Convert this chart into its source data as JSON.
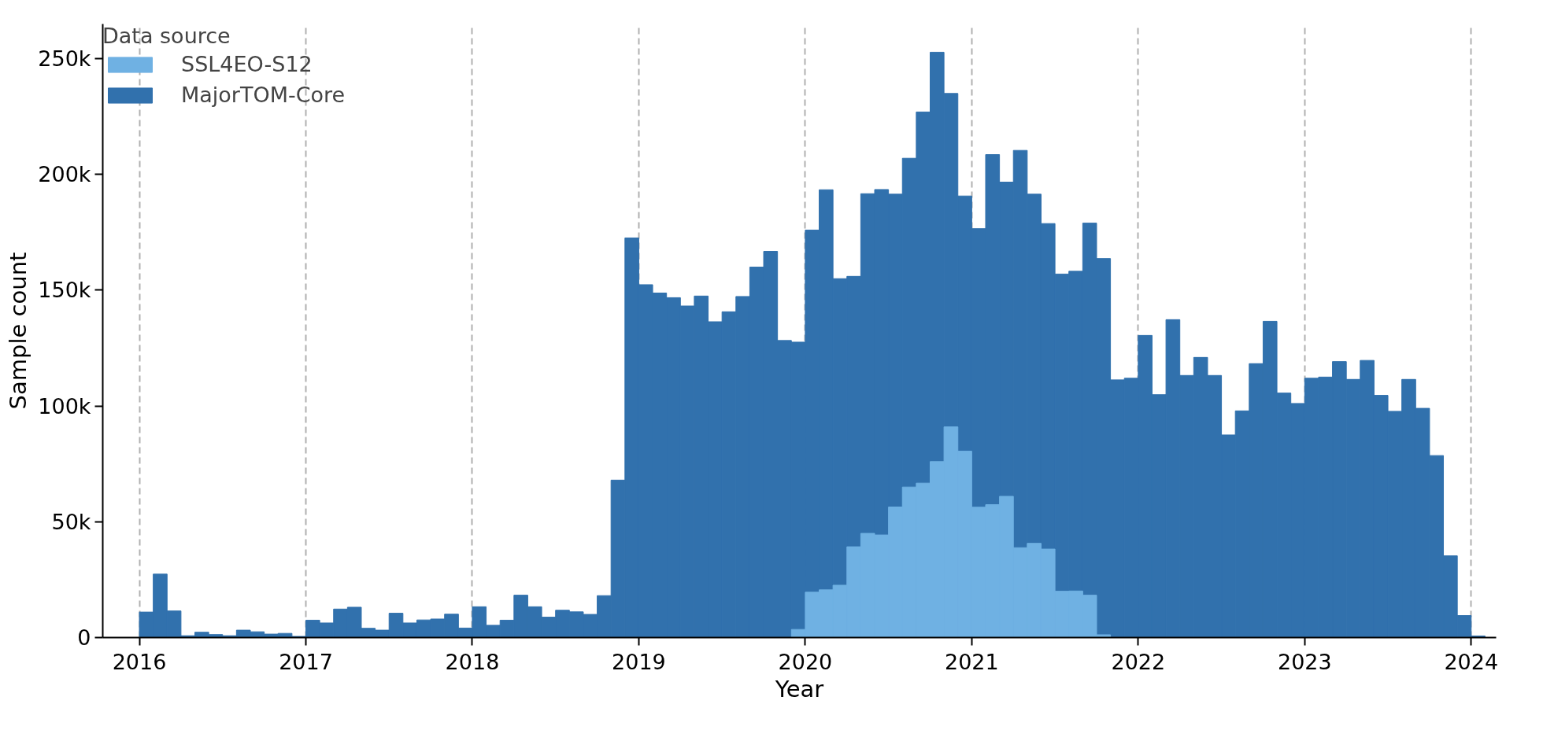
{
  "chart_data": {
    "type": "histogram",
    "xlabel": "Year",
    "ylabel": "Sample count",
    "legend_title": "Data source",
    "legend": "top left",
    "grid": "x",
    "bins": [
      2016,
      2016.0833,
      2016.1667,
      2016.25,
      2016.3333,
      2016.4167,
      2016.5,
      2016.5833,
      2016.6667,
      2016.75,
      2016.8333,
      2016.9167,
      2017,
      2017.0833,
      2017.1667,
      2017.25,
      2017.3333,
      2017.4167,
      2017.5,
      2017.5833,
      2017.6667,
      2017.75,
      2017.8333,
      2017.9167,
      2018,
      2018.0833,
      2018.1667,
      2018.25,
      2018.3333,
      2018.4167,
      2018.5,
      2018.5833,
      2018.6667,
      2018.75,
      2018.8333,
      2018.9167,
      2019,
      2019.0833,
      2019.1667,
      2019.25,
      2019.3333,
      2019.4167,
      2019.5,
      2019.5833,
      2019.6667,
      2019.75,
      2019.8333,
      2019.9167,
      2020,
      2020.0833,
      2020.1667,
      2020.25,
      2020.3333,
      2020.4167,
      2020.5,
      2020.5833,
      2020.6667,
      2020.75,
      2020.8333,
      2020.9167,
      2021,
      2021.0833,
      2021.1667,
      2021.25,
      2021.3333,
      2021.4167,
      2021.5,
      2021.5833,
      2021.6667,
      2021.75,
      2021.8333,
      2021.9167,
      2022,
      2022.0833,
      2022.1667,
      2022.25,
      2022.3333,
      2022.4167,
      2022.5,
      2022.5833,
      2022.6667,
      2022.75,
      2022.8333,
      2022.9167,
      2023,
      2023.0833,
      2023.1667,
      2023.25,
      2023.3333,
      2023.4167,
      2023.5,
      2023.5833,
      2023.6667,
      2023.75,
      2023.8333,
      2023.9167,
      2024,
      2024.0833
    ],
    "series": [
      {
        "name": "SSL4EO-S12",
        "color": "#6fb1e3",
        "values": [
          null,
          null,
          null,
          null,
          null,
          null,
          null,
          null,
          null,
          null,
          null,
          null,
          null,
          null,
          null,
          null,
          null,
          null,
          null,
          null,
          null,
          null,
          null,
          null,
          null,
          null,
          null,
          null,
          null,
          null,
          null,
          null,
          null,
          null,
          null,
          null,
          null,
          null,
          null,
          null,
          null,
          null,
          null,
          null,
          null,
          null,
          null,
          3500,
          19600,
          20600,
          22600,
          39200,
          45000,
          44300,
          56400,
          65000,
          66700,
          76000,
          91000,
          80500,
          56300,
          57400,
          61000,
          38800,
          40700,
          38200,
          20000,
          20100,
          18300,
          1200,
          null,
          null,
          null,
          null,
          null,
          null,
          null,
          null,
          null,
          null,
          null,
          null,
          null,
          null,
          null,
          null,
          null,
          null,
          null,
          null,
          null,
          null,
          null,
          null,
          null,
          null,
          null
        ]
      },
      {
        "name": "MajorTOM-Core",
        "color": "#3171ad",
        "values": [
          11000,
          27400,
          11500,
          800,
          2300,
          1300,
          800,
          3200,
          2500,
          1500,
          1800,
          500,
          7500,
          6300,
          12300,
          13100,
          4000,
          3200,
          10500,
          6300,
          7600,
          8000,
          10100,
          4100,
          13300,
          5300,
          7500,
          18300,
          13300,
          8800,
          11800,
          11100,
          10000,
          18100,
          68000,
          172600,
          152400,
          148800,
          146800,
          143200,
          147500,
          136400,
          140700,
          147300,
          160000,
          166800,
          128300,
          127600,
          176000,
          193400,
          155000,
          156000,
          191700,
          193500,
          191500,
          207000,
          227000,
          252800,
          235000,
          190700,
          176600,
          208600,
          196700,
          210400,
          191500,
          178800,
          157000,
          158200,
          179000,
          163700,
          111300,
          112000,
          130500,
          104900,
          137300,
          113200,
          121000,
          113200,
          87500,
          97900,
          118300,
          136600,
          105600,
          101100,
          112000,
          112500,
          119200,
          111500,
          119700,
          104600,
          97700,
          111500,
          99000,
          78600,
          35300,
          9500,
          700
        ]
      }
    ],
    "xlim": [
      2015.78,
      2024.15
    ],
    "xticks": [
      2016,
      2017,
      2018,
      2019,
      2020,
      2021,
      2022,
      2023,
      2024
    ],
    "ylim": [
      0,
      265000
    ],
    "yticks": [
      {
        "value": 0,
        "label": "0"
      },
      {
        "value": 50000,
        "label": "50k"
      },
      {
        "value": 100000,
        "label": "100k"
      },
      {
        "value": 150000,
        "label": "150k"
      },
      {
        "value": 200000,
        "label": "200k"
      },
      {
        "value": 250000,
        "label": "250k"
      }
    ]
  }
}
